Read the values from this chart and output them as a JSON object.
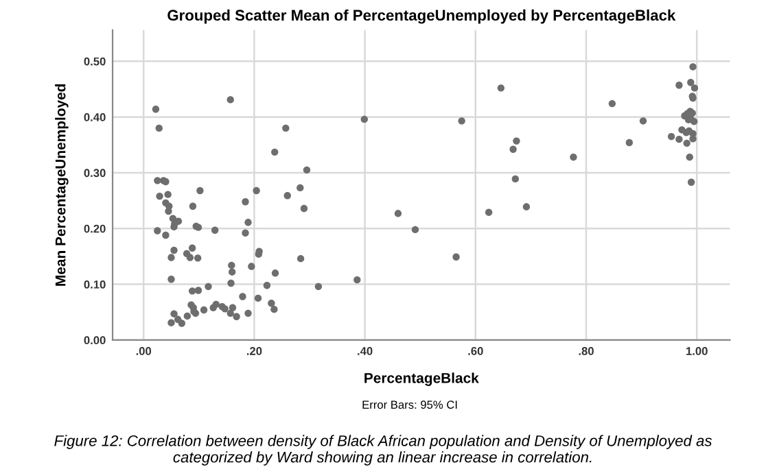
{
  "chart_data": {
    "type": "scatter",
    "title": "Grouped Scatter Mean of PercentageUnemployed by PercentageBlack",
    "xlabel": "PercentageBlack",
    "ylabel": "Mean PercentageUnemployed",
    "annotations": [
      "Error Bars: 95% CI",
      "Figure 12: Correlation between density of Black African population and Density of Unemployed as\ncategorized by Ward showing an linear increase in correlation."
    ],
    "series": [
      {
        "color": "#6e6e6e",
        "x": [
          0.022,
          0.028,
          0.025,
          0.036,
          0.04,
          0.029,
          0.044,
          0.04,
          0.046,
          0.045,
          0.025,
          0.04,
          0.053,
          0.063,
          0.055,
          0.056,
          0.055,
          0.05,
          0.05,
          0.05,
          0.055,
          0.062,
          0.069,
          0.079,
          0.089,
          0.102,
          0.078,
          0.084,
          0.098,
          0.088,
          0.095,
          0.099,
          0.088,
          0.099,
          0.086,
          0.09,
          0.091,
          0.094,
          0.109,
          0.117,
          0.129,
          0.126,
          0.131,
          0.142,
          0.147,
          0.157,
          0.159,
          0.16,
          0.158,
          0.161,
          0.157,
          0.168,
          0.179,
          0.184,
          0.184,
          0.189,
          0.189,
          0.195,
          0.204,
          0.208,
          0.209,
          0.207,
          0.223,
          0.231,
          0.236,
          0.238,
          0.237,
          0.257,
          0.26,
          0.283,
          0.29,
          0.295,
          0.284,
          0.316,
          0.386,
          0.399,
          0.46,
          0.491,
          0.565,
          0.575,
          0.646,
          0.624,
          0.674,
          0.668,
          0.672,
          0.692,
          0.777,
          0.847,
          0.878,
          0.903,
          0.954,
          0.968,
          0.968,
          0.973,
          0.981,
          0.982,
          0.987,
          0.99,
          0.993,
          0.989,
          0.996,
          0.992,
          0.993,
          0.978,
          0.983,
          0.988,
          0.992,
          0.989,
          0.995,
          0.986,
          0.993,
          0.993,
          0.985
        ],
        "values": [
          0.414,
          0.38,
          0.286,
          0.286,
          0.284,
          0.258,
          0.261,
          0.246,
          0.24,
          0.231,
          0.196,
          0.188,
          0.218,
          0.213,
          0.203,
          0.208,
          0.161,
          0.148,
          0.109,
          0.031,
          0.047,
          0.037,
          0.03,
          0.043,
          0.24,
          0.268,
          0.155,
          0.148,
          0.147,
          0.165,
          0.204,
          0.202,
          0.088,
          0.089,
          0.063,
          0.058,
          0.051,
          0.048,
          0.054,
          0.096,
          0.197,
          0.058,
          0.064,
          0.06,
          0.056,
          0.431,
          0.134,
          0.122,
          0.102,
          0.058,
          0.048,
          0.042,
          0.078,
          0.248,
          0.192,
          0.211,
          0.048,
          0.132,
          0.268,
          0.154,
          0.159,
          0.075,
          0.098,
          0.066,
          0.055,
          0.12,
          0.337,
          0.38,
          0.259,
          0.273,
          0.236,
          0.305,
          0.146,
          0.096,
          0.108,
          0.396,
          0.227,
          0.198,
          0.149,
          0.393,
          0.452,
          0.229,
          0.357,
          0.342,
          0.289,
          0.239,
          0.328,
          0.424,
          0.354,
          0.393,
          0.365,
          0.457,
          0.36,
          0.377,
          0.372,
          0.353,
          0.328,
          0.283,
          0.49,
          0.462,
          0.452,
          0.437,
          0.434,
          0.402,
          0.406,
          0.41,
          0.407,
          0.397,
          0.392,
          0.375,
          0.37,
          0.361,
          0.395
        ]
      }
    ],
    "xlim": [
      -0.056,
      1.06
    ],
    "ylim": [
      0,
      0.556
    ],
    "xticks": [
      {
        "value": 0,
        "label": ".00"
      },
      {
        "value": 0.2,
        "label": ".20"
      },
      {
        "value": 0.4,
        "label": ".40"
      },
      {
        "value": 0.6,
        "label": ".60"
      },
      {
        "value": 0.8,
        "label": ".80"
      },
      {
        "value": 1.0,
        "label": "1.00"
      }
    ],
    "yticks": [
      {
        "value": 0,
        "label": "0.00"
      },
      {
        "value": 0.1,
        "label": "0.10"
      },
      {
        "value": 0.2,
        "label": "0.20"
      },
      {
        "value": 0.3,
        "label": "0.30"
      },
      {
        "value": 0.4,
        "label": "0.40"
      },
      {
        "value": 0.5,
        "label": "0.50"
      }
    ],
    "grid": true,
    "marker": "circle"
  }
}
